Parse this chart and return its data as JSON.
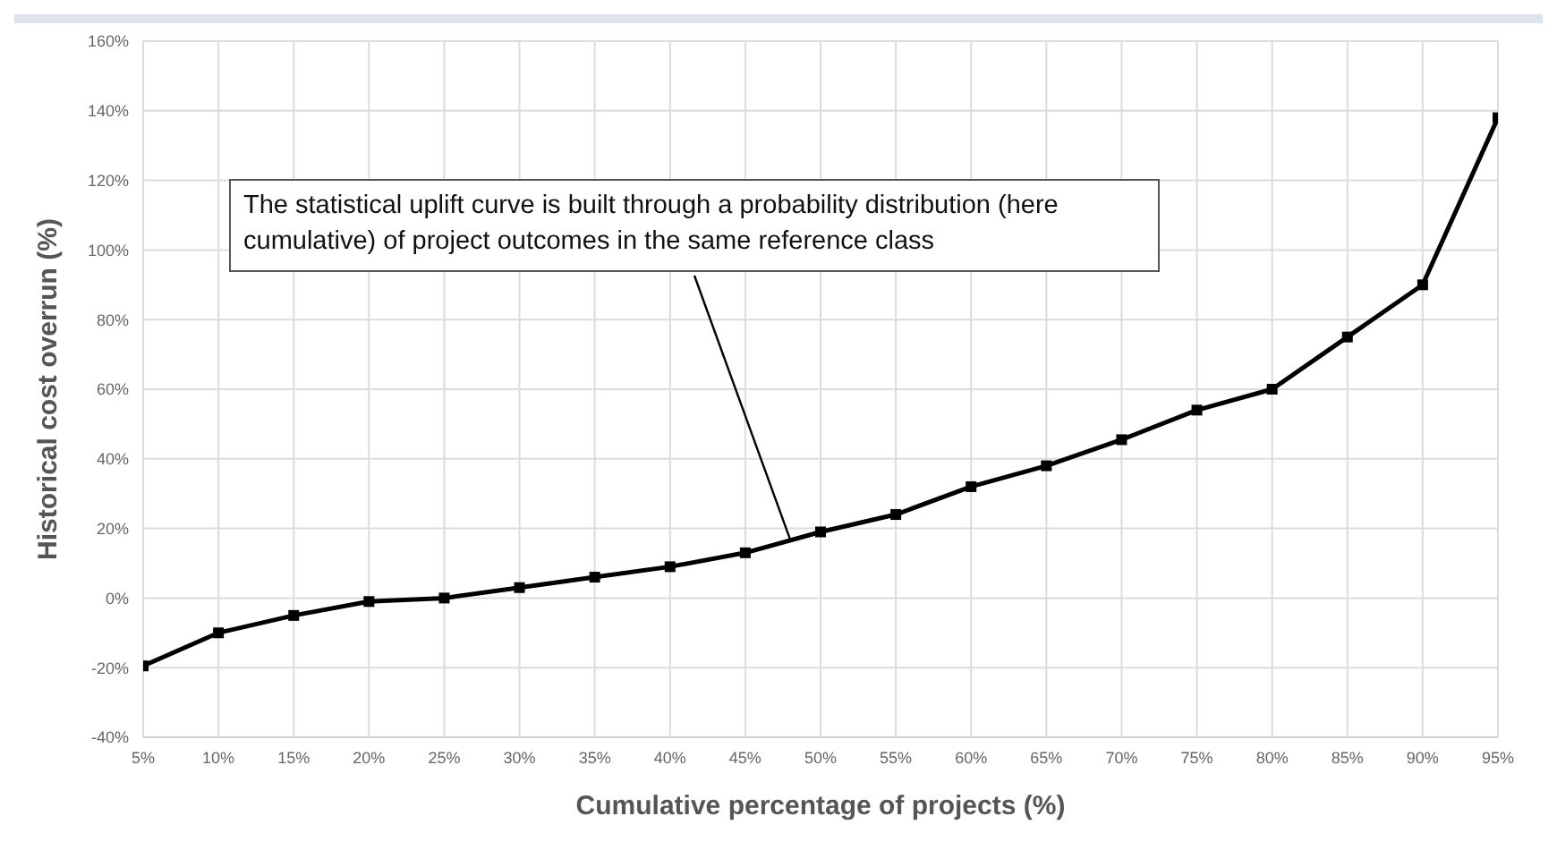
{
  "chart_data": {
    "type": "line",
    "xlabel": "Cumulative percentage of projects (%)",
    "ylabel": "Historical cost overrun (%)",
    "annotations": [
      "The statistical uplift curve is built through a probability distribution (here cumulative) of project outcomes in the same reference class"
    ],
    "categories": [
      "5%",
      "10%",
      "15%",
      "20%",
      "25%",
      "30%",
      "35%",
      "40%",
      "45%",
      "50%",
      "55%",
      "60%",
      "65%",
      "70%",
      "75%",
      "80%",
      "85%",
      "90%",
      "95%"
    ],
    "series": [
      {
        "color": "#000000",
        "values": [
          -19.5,
          -10,
          -5,
          -1,
          0,
          3,
          6,
          9,
          13,
          19,
          24,
          32,
          38,
          45.5,
          54,
          60,
          75,
          90,
          138
        ]
      }
    ],
    "ylim": [
      -40,
      160
    ],
    "yticks": [
      {
        "value": -40,
        "label": "-40%"
      },
      {
        "value": -20,
        "label": "-20%"
      },
      {
        "value": 0,
        "label": "0%"
      },
      {
        "value": 20,
        "label": "20%"
      },
      {
        "value": 40,
        "label": "40%"
      },
      {
        "value": 60,
        "label": "60%"
      },
      {
        "value": 80,
        "label": "80%"
      },
      {
        "value": 100,
        "label": "100%"
      },
      {
        "value": 120,
        "label": "120%"
      },
      {
        "value": 140,
        "label": "140%"
      },
      {
        "value": 160,
        "label": "160%"
      }
    ],
    "grid": true,
    "marker": "square",
    "line_style": "solid"
  }
}
